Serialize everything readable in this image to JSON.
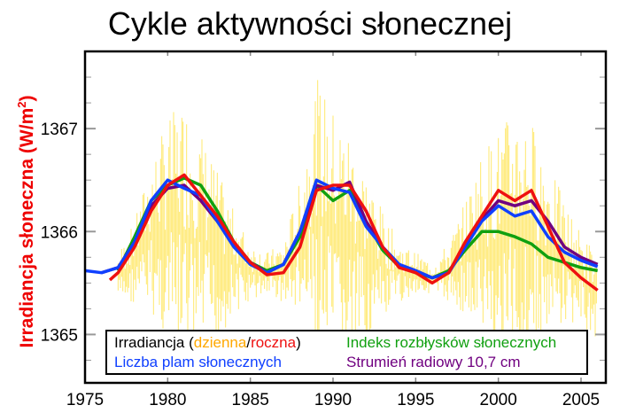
{
  "chart_data": {
    "type": "line",
    "title": "Cykle aktywności słonecznej",
    "xlabel": "",
    "ylabel": "Irradiancja słoneczna (W/m²)",
    "ylabel_parts": {
      "main": "Irradiancja słoneczna (W/m",
      "sup": "2",
      "end": ")"
    },
    "xlim": [
      1975,
      2006.5
    ],
    "ylim": [
      1364.53,
      1367.75
    ],
    "xticks": [
      1975,
      1980,
      1985,
      1990,
      1995,
      2000,
      2005
    ],
    "xtick_labels": [
      "1975",
      "1980",
      "1985",
      "1990",
      "1995",
      "2000",
      "2005"
    ],
    "yticks": [
      1365,
      1366,
      1367
    ],
    "ytick_labels": [
      "1365",
      "1366",
      "1367"
    ],
    "grid": false,
    "legend_placement": "bottom",
    "legend": {
      "irr_prefix": "Irradiancja (",
      "daily": "dzienna",
      "slash": "/",
      "annual": "roczna",
      "irr_suffix": ")",
      "flare": "Indeks rozbłysków słonecznych",
      "sunspot": "Liczba plam słonecznych",
      "radio": "Strumień radiowy 10,7 cm"
    },
    "daily_range": {
      "name": "dzienna",
      "color": "#ffe030",
      "x": [
        1977,
        1978,
        1979,
        1980,
        1981,
        1982,
        1983,
        1984,
        1985,
        1986,
        1987,
        1988,
        1989,
        1990,
        1991,
        1992,
        1993,
        1994,
        1995,
        1996,
        1997,
        1998,
        1999,
        2000,
        2001,
        2002,
        2003,
        2004,
        2005,
        2006
      ],
      "min": [
        1365.3,
        1365.3,
        1365.2,
        1364.9,
        1364.7,
        1364.8,
        1364.9,
        1365.2,
        1365.3,
        1365.4,
        1365.3,
        1365.2,
        1364.8,
        1364.6,
        1364.7,
        1364.9,
        1365.1,
        1365.3,
        1365.4,
        1365.4,
        1365.3,
        1365.2,
        1364.9,
        1364.7,
        1364.8,
        1364.8,
        1364.9,
        1365.1,
        1365.1,
        1364.9
      ],
      "max": [
        1365.8,
        1366.1,
        1366.7,
        1367.1,
        1367.3,
        1367.0,
        1366.6,
        1366.2,
        1365.9,
        1365.8,
        1365.9,
        1366.5,
        1367.5,
        1367.2,
        1367.0,
        1366.6,
        1366.2,
        1365.9,
        1365.8,
        1365.7,
        1365.9,
        1366.3,
        1366.8,
        1367.0,
        1367.2,
        1367.1,
        1366.7,
        1366.3,
        1366.0,
        1365.8
      ]
    },
    "series": [
      {
        "name": "Indeks rozbłysków słonecznych",
        "color": "#10a010",
        "x": [
          1977,
          1978,
          1979,
          1980,
          1981,
          1982,
          1983,
          1984,
          1985,
          1986,
          1987,
          1988,
          1989,
          1990,
          1991,
          1992,
          1993,
          1994,
          1995,
          1996,
          1997,
          1998,
          1999,
          2000,
          2001,
          2002,
          2003,
          2004,
          2005,
          2006
        ],
        "y": [
          1365.62,
          1365.95,
          1366.3,
          1366.45,
          1366.52,
          1366.45,
          1366.2,
          1365.9,
          1365.7,
          1365.62,
          1365.68,
          1365.95,
          1366.45,
          1366.3,
          1366.4,
          1366.1,
          1365.82,
          1365.66,
          1365.6,
          1365.55,
          1365.62,
          1365.82,
          1366.0,
          1366.0,
          1365.95,
          1365.88,
          1365.75,
          1365.7,
          1365.65,
          1365.62
        ]
      },
      {
        "name": "Strumień radiowy 10,7 cm",
        "color": "#700080",
        "x": [
          1976,
          1977,
          1978,
          1979,
          1980,
          1981,
          1982,
          1983,
          1984,
          1985,
          1986,
          1987,
          1988,
          1989,
          1990,
          1991,
          1992,
          1993,
          1994,
          1995,
          1996,
          1997,
          1998,
          1999,
          2000,
          2001,
          2002,
          2003,
          2004,
          2005,
          2006
        ],
        "y": [
          1365.6,
          1365.65,
          1365.9,
          1366.25,
          1366.42,
          1366.45,
          1366.3,
          1366.1,
          1365.88,
          1365.7,
          1365.6,
          1365.68,
          1366.0,
          1366.45,
          1366.4,
          1366.48,
          1366.1,
          1365.85,
          1365.68,
          1365.62,
          1365.55,
          1365.6,
          1365.88,
          1366.12,
          1366.3,
          1366.25,
          1366.3,
          1366.1,
          1365.85,
          1365.75,
          1365.68
        ]
      },
      {
        "name": "Liczba plam słonecznych",
        "color": "#1040ff",
        "x": [
          1975,
          1976,
          1977,
          1978,
          1979,
          1980,
          1981,
          1982,
          1983,
          1984,
          1985,
          1986,
          1987,
          1988,
          1989,
          1990,
          1991,
          1992,
          1993,
          1994,
          1995,
          1996,
          1997,
          1998,
          1999,
          2000,
          2001,
          2002,
          2003,
          2004,
          2005,
          2006
        ],
        "y": [
          1365.62,
          1365.6,
          1365.65,
          1365.9,
          1366.3,
          1366.5,
          1366.42,
          1366.35,
          1366.1,
          1365.85,
          1365.68,
          1365.6,
          1365.68,
          1366.0,
          1366.5,
          1366.42,
          1366.38,
          1366.05,
          1365.85,
          1365.68,
          1365.62,
          1365.55,
          1365.6,
          1365.85,
          1366.1,
          1366.25,
          1366.15,
          1366.2,
          1365.95,
          1365.8,
          1365.72,
          1365.66
        ]
      },
      {
        "name": "roczna",
        "color": "#ee1010",
        "x": [
          1976.5,
          1977,
          1978,
          1979,
          1980,
          1981,
          1982,
          1983,
          1984,
          1985,
          1986,
          1987,
          1988,
          1989,
          1990,
          1991,
          1992,
          1993,
          1994,
          1995,
          1996,
          1997,
          1998,
          1999,
          2000,
          2001,
          2002,
          2003,
          2004,
          2005,
          2006
        ],
        "y": [
          1365.53,
          1365.6,
          1365.85,
          1366.2,
          1366.45,
          1366.55,
          1366.35,
          1366.15,
          1365.9,
          1365.7,
          1365.58,
          1365.6,
          1365.85,
          1366.4,
          1366.45,
          1366.45,
          1366.2,
          1365.85,
          1365.65,
          1365.6,
          1365.5,
          1365.6,
          1365.9,
          1366.15,
          1366.4,
          1366.3,
          1366.4,
          1366.05,
          1365.7,
          1365.55,
          1365.43
        ]
      }
    ]
  }
}
